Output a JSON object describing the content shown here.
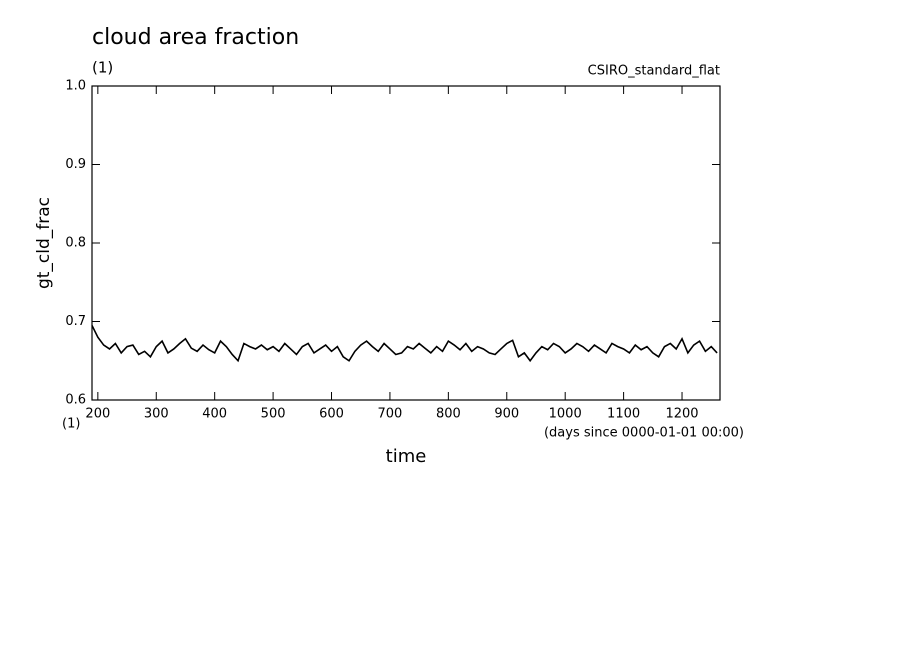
{
  "chart_data": {
    "type": "line",
    "title": "cloud area fraction",
    "units": "(1)",
    "source": "CSIRO_standard_flat",
    "y_label": "gt_cld_frac",
    "y_units": "(1)",
    "x_label": "time",
    "x_units": "(days since 0000-01-01 00:00)",
    "x": [
      190,
      200,
      210,
      220,
      230,
      240,
      250,
      260,
      270,
      280,
      290,
      300,
      310,
      320,
      330,
      340,
      350,
      360,
      370,
      380,
      390,
      400,
      410,
      420,
      430,
      440,
      450,
      460,
      470,
      480,
      490,
      500,
      510,
      520,
      530,
      540,
      550,
      560,
      570,
      580,
      590,
      600,
      610,
      620,
      630,
      640,
      650,
      660,
      670,
      680,
      690,
      700,
      710,
      720,
      730,
      740,
      750,
      760,
      770,
      780,
      790,
      800,
      810,
      820,
      830,
      840,
      850,
      860,
      870,
      880,
      890,
      900,
      910,
      920,
      930,
      940,
      950,
      960,
      970,
      980,
      990,
      1000,
      1010,
      1020,
      1030,
      1040,
      1050,
      1060,
      1070,
      1080,
      1090,
      1100,
      1110,
      1120,
      1130,
      1140,
      1150,
      1160,
      1170,
      1180,
      1190,
      1200,
      1210,
      1220,
      1230,
      1240,
      1250,
      1260
    ],
    "series": [
      {
        "name": "gt_cld_frac",
        "color": "#000000",
        "values": [
          0.695,
          0.68,
          0.67,
          0.665,
          0.672,
          0.66,
          0.668,
          0.67,
          0.658,
          0.662,
          0.655,
          0.668,
          0.675,
          0.66,
          0.665,
          0.672,
          0.678,
          0.666,
          0.662,
          0.67,
          0.664,
          0.66,
          0.675,
          0.668,
          0.658,
          0.65,
          0.672,
          0.668,
          0.665,
          0.67,
          0.664,
          0.668,
          0.662,
          0.672,
          0.665,
          0.658,
          0.668,
          0.672,
          0.66,
          0.665,
          0.67,
          0.662,
          0.668,
          0.655,
          0.65,
          0.662,
          0.67,
          0.675,
          0.668,
          0.662,
          0.672,
          0.665,
          0.658,
          0.66,
          0.668,
          0.665,
          0.672,
          0.666,
          0.66,
          0.668,
          0.662,
          0.675,
          0.67,
          0.664,
          0.672,
          0.662,
          0.668,
          0.665,
          0.66,
          0.658,
          0.665,
          0.672,
          0.676,
          0.655,
          0.66,
          0.65,
          0.66,
          0.668,
          0.664,
          0.672,
          0.668,
          0.66,
          0.665,
          0.672,
          0.668,
          0.662,
          0.67,
          0.665,
          0.66,
          0.672,
          0.668,
          0.665,
          0.66,
          0.67,
          0.664,
          0.668,
          0.66,
          0.655,
          0.668,
          0.672,
          0.665,
          0.678,
          0.66,
          0.67,
          0.675,
          0.662,
          0.668,
          0.66
        ]
      }
    ],
    "xlim": [
      190,
      1265
    ],
    "ylim": [
      0.6,
      1
    ],
    "xticks": [
      200,
      300,
      400,
      500,
      600,
      700,
      800,
      900,
      1000,
      1100,
      1200
    ],
    "yticks": [
      0.6,
      0.7,
      0.8,
      0.9,
      {
        "value": 1,
        "label": "1.0"
      }
    ]
  }
}
